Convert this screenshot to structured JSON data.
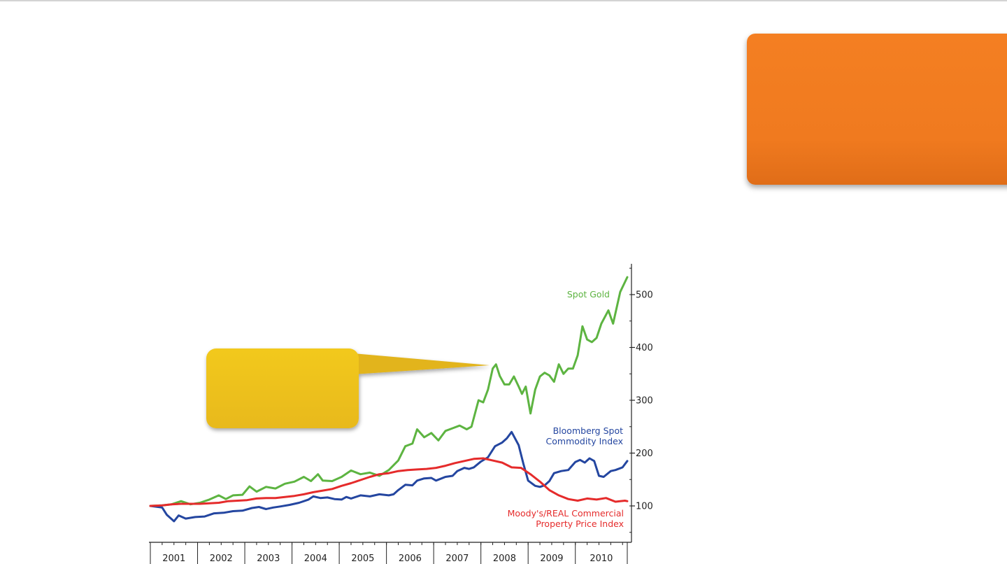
{
  "colors": {
    "callout_box": "#f07a1f",
    "callout_bubble": "#efc31f",
    "gold": "#5db441",
    "commodity": "#2446a0",
    "property": "#e52b2b"
  },
  "chart_data": {
    "type": "line",
    "x_tick_labels": [
      "2001",
      "2002",
      "2003",
      "2004",
      "2005",
      "2006",
      "2007",
      "2008",
      "2009",
      "2010"
    ],
    "y_tick_labels": [
      "500",
      "400",
      "300",
      "200",
      "100"
    ],
    "y_ticks": [
      500,
      400,
      300,
      200,
      100
    ],
    "xlim": [
      2000.75,
      2010.85
    ],
    "ylim": [
      32,
      560
    ],
    "y_axis_position": "right",
    "grid": false,
    "series": [
      {
        "name": "Spot Gold",
        "label_lines": [
          "Spot Gold"
        ],
        "color": "#5db441",
        "points": [
          [
            2000.75,
            100
          ],
          [
            2001.0,
            101
          ],
          [
            2001.2,
            103
          ],
          [
            2001.4,
            109
          ],
          [
            2001.6,
            103
          ],
          [
            2001.8,
            106
          ],
          [
            2002.0,
            112
          ],
          [
            2002.2,
            120
          ],
          [
            2002.35,
            113
          ],
          [
            2002.5,
            120
          ],
          [
            2002.7,
            121
          ],
          [
            2002.85,
            137
          ],
          [
            2003.0,
            127
          ],
          [
            2003.2,
            136
          ],
          [
            2003.4,
            133
          ],
          [
            2003.6,
            142
          ],
          [
            2003.8,
            146
          ],
          [
            2004.0,
            155
          ],
          [
            2004.15,
            147
          ],
          [
            2004.3,
            160
          ],
          [
            2004.4,
            148
          ],
          [
            2004.6,
            147
          ],
          [
            2004.8,
            155
          ],
          [
            2005.0,
            167
          ],
          [
            2005.2,
            160
          ],
          [
            2005.4,
            163
          ],
          [
            2005.6,
            157
          ],
          [
            2005.8,
            168
          ],
          [
            2006.0,
            186
          ],
          [
            2006.15,
            213
          ],
          [
            2006.3,
            218
          ],
          [
            2006.4,
            245
          ],
          [
            2006.55,
            230
          ],
          [
            2006.7,
            238
          ],
          [
            2006.85,
            224
          ],
          [
            2007.0,
            242
          ],
          [
            2007.15,
            247
          ],
          [
            2007.3,
            252
          ],
          [
            2007.45,
            245
          ],
          [
            2007.55,
            250
          ],
          [
            2007.7,
            300
          ],
          [
            2007.8,
            296
          ],
          [
            2007.9,
            320
          ],
          [
            2008.0,
            360
          ],
          [
            2008.07,
            368
          ],
          [
            2008.15,
            346
          ],
          [
            2008.25,
            330
          ],
          [
            2008.35,
            330
          ],
          [
            2008.45,
            345
          ],
          [
            2008.55,
            326
          ],
          [
            2008.62,
            312
          ],
          [
            2008.7,
            326
          ],
          [
            2008.8,
            275
          ],
          [
            2008.9,
            320
          ],
          [
            2009.0,
            345
          ],
          [
            2009.1,
            352
          ],
          [
            2009.2,
            347
          ],
          [
            2009.3,
            335
          ],
          [
            2009.4,
            368
          ],
          [
            2009.5,
            350
          ],
          [
            2009.6,
            360
          ],
          [
            2009.7,
            360
          ],
          [
            2009.8,
            385
          ],
          [
            2009.9,
            440
          ],
          [
            2010.0,
            415
          ],
          [
            2010.1,
            410
          ],
          [
            2010.2,
            418
          ],
          [
            2010.3,
            445
          ],
          [
            2010.45,
            470
          ],
          [
            2010.55,
            445
          ],
          [
            2010.7,
            505
          ],
          [
            2010.85,
            533
          ]
        ]
      },
      {
        "name": "Bloomberg Spot Commodity Index",
        "label_lines": [
          "Bloomberg Spot",
          "Commodity Index"
        ],
        "color": "#2446a0",
        "points": [
          [
            2000.75,
            100
          ],
          [
            2001.0,
            97
          ],
          [
            2001.1,
            83
          ],
          [
            2001.25,
            71
          ],
          [
            2001.35,
            82
          ],
          [
            2001.5,
            76
          ],
          [
            2001.7,
            79
          ],
          [
            2001.9,
            80
          ],
          [
            2002.1,
            86
          ],
          [
            2002.3,
            87
          ],
          [
            2002.5,
            90
          ],
          [
            2002.7,
            91
          ],
          [
            2002.9,
            96
          ],
          [
            2003.05,
            98
          ],
          [
            2003.2,
            94
          ],
          [
            2003.35,
            97
          ],
          [
            2003.5,
            99
          ],
          [
            2003.7,
            102
          ],
          [
            2003.9,
            106
          ],
          [
            2004.1,
            112
          ],
          [
            2004.2,
            118
          ],
          [
            2004.35,
            115
          ],
          [
            2004.5,
            116
          ],
          [
            2004.65,
            113
          ],
          [
            2004.8,
            112
          ],
          [
            2004.9,
            117
          ],
          [
            2005.0,
            114
          ],
          [
            2005.2,
            120
          ],
          [
            2005.4,
            118
          ],
          [
            2005.6,
            122
          ],
          [
            2005.8,
            120
          ],
          [
            2005.9,
            122
          ],
          [
            2006.0,
            130
          ],
          [
            2006.15,
            140
          ],
          [
            2006.3,
            139
          ],
          [
            2006.4,
            148
          ],
          [
            2006.55,
            152
          ],
          [
            2006.7,
            153
          ],
          [
            2006.8,
            148
          ],
          [
            2007.0,
            155
          ],
          [
            2007.15,
            157
          ],
          [
            2007.25,
            166
          ],
          [
            2007.4,
            172
          ],
          [
            2007.5,
            170
          ],
          [
            2007.6,
            173
          ],
          [
            2007.75,
            184
          ],
          [
            2007.9,
            192
          ],
          [
            2008.05,
            213
          ],
          [
            2008.2,
            220
          ],
          [
            2008.3,
            228
          ],
          [
            2008.4,
            240
          ],
          [
            2008.55,
            215
          ],
          [
            2008.65,
            180
          ],
          [
            2008.75,
            148
          ],
          [
            2008.9,
            138
          ],
          [
            2009.0,
            136
          ],
          [
            2009.1,
            139
          ],
          [
            2009.2,
            147
          ],
          [
            2009.3,
            162
          ],
          [
            2009.45,
            166
          ],
          [
            2009.6,
            168
          ],
          [
            2009.75,
            183
          ],
          [
            2009.85,
            187
          ],
          [
            2009.95,
            182
          ],
          [
            2010.05,
            190
          ],
          [
            2010.15,
            185
          ],
          [
            2010.25,
            157
          ],
          [
            2010.35,
            155
          ],
          [
            2010.5,
            166
          ],
          [
            2010.6,
            168
          ],
          [
            2010.75,
            173
          ],
          [
            2010.85,
            185
          ]
        ]
      },
      {
        "name": "Moody's/REAL Commercial Property Price Index",
        "label_lines": [
          "Moody's/REAL Commercial",
          "Property Price Index"
        ],
        "color": "#e52b2b",
        "points": [
          [
            2000.75,
            100
          ],
          [
            2001.0,
            101
          ],
          [
            2001.2,
            103
          ],
          [
            2001.4,
            104
          ],
          [
            2001.6,
            104
          ],
          [
            2001.8,
            104
          ],
          [
            2002.0,
            105
          ],
          [
            2002.2,
            106
          ],
          [
            2002.4,
            109
          ],
          [
            2002.6,
            110
          ],
          [
            2002.8,
            111
          ],
          [
            2003.0,
            114
          ],
          [
            2003.2,
            115
          ],
          [
            2003.4,
            115
          ],
          [
            2003.6,
            117
          ],
          [
            2003.8,
            119
          ],
          [
            2004.0,
            122
          ],
          [
            2004.2,
            126
          ],
          [
            2004.4,
            129
          ],
          [
            2004.6,
            132
          ],
          [
            2004.8,
            138
          ],
          [
            2005.0,
            143
          ],
          [
            2005.2,
            149
          ],
          [
            2005.4,
            155
          ],
          [
            2005.6,
            160
          ],
          [
            2005.8,
            162
          ],
          [
            2006.0,
            166
          ],
          [
            2006.2,
            168
          ],
          [
            2006.4,
            169
          ],
          [
            2006.6,
            170
          ],
          [
            2006.8,
            172
          ],
          [
            2007.0,
            176
          ],
          [
            2007.2,
            181
          ],
          [
            2007.4,
            185
          ],
          [
            2007.6,
            189
          ],
          [
            2007.8,
            190
          ],
          [
            2008.0,
            186
          ],
          [
            2008.2,
            182
          ],
          [
            2008.4,
            173
          ],
          [
            2008.6,
            172
          ],
          [
            2008.8,
            160
          ],
          [
            2009.0,
            146
          ],
          [
            2009.2,
            130
          ],
          [
            2009.4,
            120
          ],
          [
            2009.6,
            113
          ],
          [
            2009.8,
            110
          ],
          [
            2010.0,
            114
          ],
          [
            2010.2,
            112
          ],
          [
            2010.4,
            115
          ],
          [
            2010.6,
            108
          ],
          [
            2010.8,
            110
          ],
          [
            2010.85,
            109
          ]
        ]
      }
    ]
  }
}
